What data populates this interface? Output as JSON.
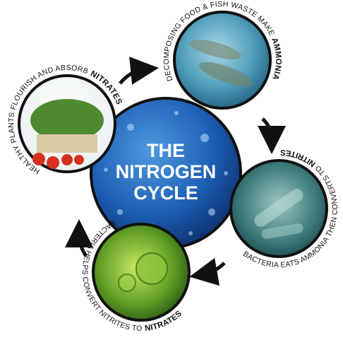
{
  "center_title": [
    "THE",
    "NITROGEN",
    "CYCLE"
  ],
  "stages": [
    {
      "text": "DECOMPOSING FOOD & FISH WASTE MAKE",
      "emphasis": "AMMONIA"
    },
    {
      "text": "BACTERIA EATS AMMONIA THEN CONVERTS TO",
      "emphasis": "NITRITES"
    },
    {
      "text": "BACTERIA HELPS CONVERT NITRITES TO",
      "emphasis": "NITRATES"
    },
    {
      "text": "HEALTHY PLANTS FLOURISH AND ABSORB",
      "emphasis": "NITRATES"
    }
  ]
}
